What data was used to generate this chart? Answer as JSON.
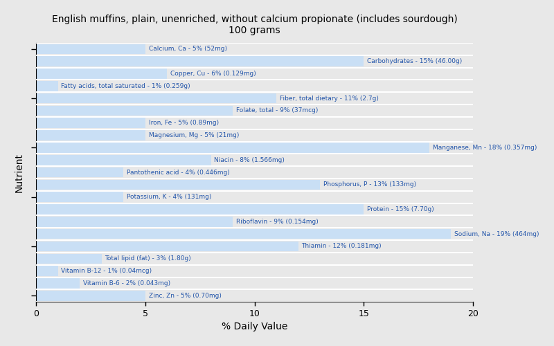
{
  "title": "English muffins, plain, unenriched, without calcium propionate (includes sourdough)\n100 grams",
  "xlabel": "% Daily Value",
  "ylabel": "Nutrient",
  "xlim": [
    0,
    20
  ],
  "bar_color": "#c9dff5",
  "label_color": "#2255aa",
  "background_color": "#e8e8e8",
  "bar_gap_color": "#ffffff",
  "nutrients": [
    {
      "name": "Calcium, Ca - 5% (52mg)",
      "value": 5
    },
    {
      "name": "Carbohydrates - 15% (46.00g)",
      "value": 15
    },
    {
      "name": "Copper, Cu - 6% (0.129mg)",
      "value": 6
    },
    {
      "name": "Fatty acids, total saturated - 1% (0.259g)",
      "value": 1
    },
    {
      "name": "Fiber, total dietary - 11% (2.7g)",
      "value": 11
    },
    {
      "name": "Folate, total - 9% (37mcg)",
      "value": 9
    },
    {
      "name": "Iron, Fe - 5% (0.89mg)",
      "value": 5
    },
    {
      "name": "Magnesium, Mg - 5% (21mg)",
      "value": 5
    },
    {
      "name": "Manganese, Mn - 18% (0.357mg)",
      "value": 18
    },
    {
      "name": "Niacin - 8% (1.566mg)",
      "value": 8
    },
    {
      "name": "Pantothenic acid - 4% (0.446mg)",
      "value": 4
    },
    {
      "name": "Phosphorus, P - 13% (133mg)",
      "value": 13
    },
    {
      "name": "Potassium, K - 4% (131mg)",
      "value": 4
    },
    {
      "name": "Protein - 15% (7.70g)",
      "value": 15
    },
    {
      "name": "Riboflavin - 9% (0.154mg)",
      "value": 9
    },
    {
      "name": "Sodium, Na - 19% (464mg)",
      "value": 19
    },
    {
      "name": "Thiamin - 12% (0.181mg)",
      "value": 12
    },
    {
      "name": "Total lipid (fat) - 3% (1.80g)",
      "value": 3
    },
    {
      "name": "Vitamin B-12 - 1% (0.04mcg)",
      "value": 1
    },
    {
      "name": "Vitamin B-6 - 2% (0.043mg)",
      "value": 2
    },
    {
      "name": "Zinc, Zn - 5% (0.70mg)",
      "value": 5
    }
  ],
  "ytick_positions": [
    0,
    4,
    8,
    12,
    16,
    20
  ],
  "figsize": [
    8.0,
    5.0
  ],
  "dpi": 100
}
